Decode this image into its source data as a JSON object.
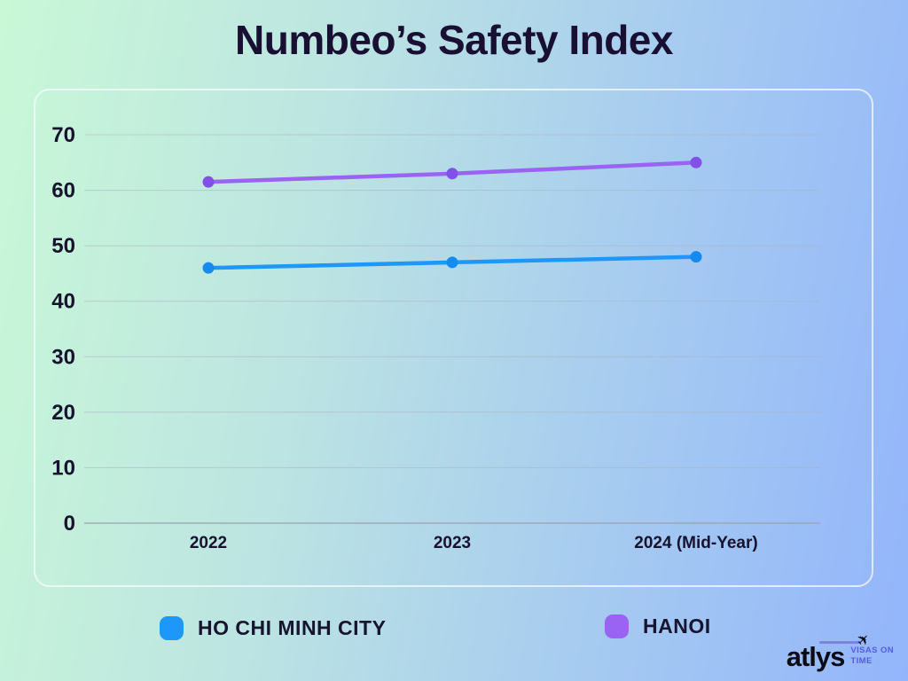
{
  "title": "Numbeo’s Safety Index",
  "colors": {
    "background_left": "#c9f8d7",
    "background_right": "#93b5fb",
    "title_text": "#190f33",
    "axis_label": "#17122d",
    "gridline": "#a9b2bf",
    "zero_line": "#97a0ae",
    "panel_border": "#f5f5fb",
    "hcmc_line": "#1d97fa",
    "hcmc_point": "#168bef",
    "hanoi_line": "#9a63f3",
    "hanoi_point": "#8050e8",
    "logo_accent": "#555ae8"
  },
  "chart_data": {
    "type": "line",
    "title": "Numbeo’s Safety Index",
    "categories": [
      "2022",
      "2023",
      "2024 (Mid-Year)"
    ],
    "series": [
      {
        "name": "HO CHI MINH CITY",
        "color": "#1d97fa",
        "point_color": "#168bef",
        "values": [
          46,
          47,
          48
        ]
      },
      {
        "name": "HANOI",
        "color": "#9a63f3",
        "point_color": "#8050e8",
        "values": [
          61.5,
          63,
          65
        ]
      }
    ],
    "xlabel": "",
    "ylabel": "",
    "ylim": [
      0,
      70
    ],
    "yticks": [
      0,
      10,
      20,
      30,
      40,
      50,
      60,
      70
    ],
    "grid": true,
    "legend_position": "bottom"
  },
  "legend": {
    "items": [
      {
        "label": "HO CHI MINH CITY",
        "color": "#1d97fa"
      },
      {
        "label": "HANOI",
        "color": "#9a63f3"
      }
    ]
  },
  "logo": {
    "brand": "atlys",
    "plane_icon": "✈",
    "tagline_line1": "VISAS ON",
    "tagline_line2": "TIME"
  }
}
